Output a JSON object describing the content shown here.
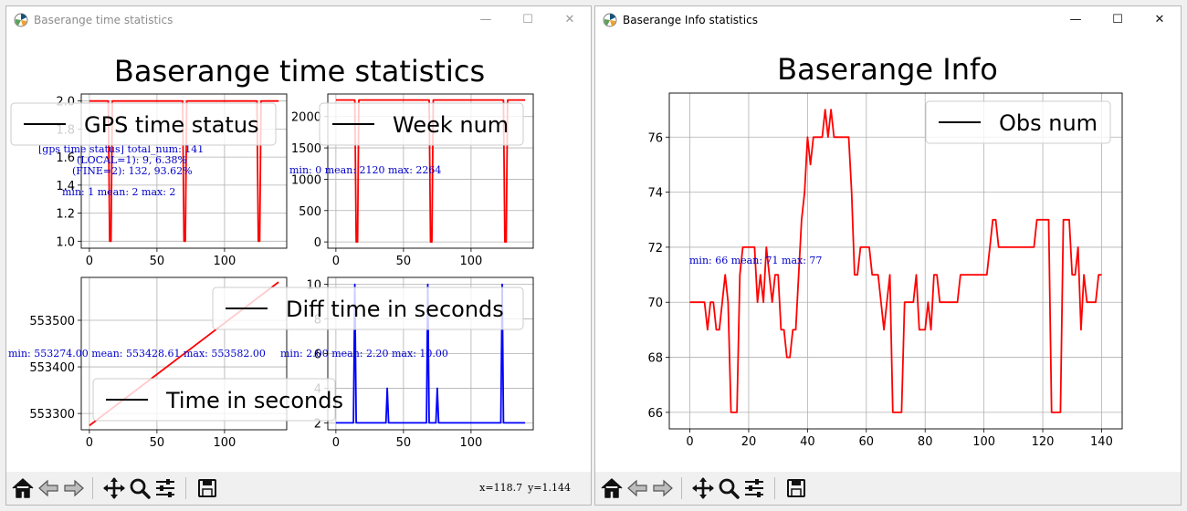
{
  "windows": [
    {
      "title": "Baserange time statistics",
      "figure_title": "Baserange time statistics",
      "coordinates": {
        "x": "x=118.7",
        "y": "y=1.144"
      }
    },
    {
      "title": "Baserange Info statistics",
      "figure_title": "Baserange Info",
      "coordinates": {
        "x": "",
        "y": ""
      }
    }
  ],
  "window_controls": {
    "minimize": "—",
    "maximize": "☐",
    "close": "✕"
  },
  "toolbar": [
    "home-icon",
    "back-arrow-icon",
    "forward-arrow-icon",
    "pan-icon",
    "zoom-icon",
    "configure-subplots-icon",
    "save-icon"
  ],
  "colors": {
    "line_red": "#ff0000",
    "line_blue": "#0000ff",
    "annotation": "#0000cc",
    "grid": "#b0b0b0",
    "legend_line": "#000000"
  },
  "chart_data": [
    {
      "type": "line",
      "window": 0,
      "legend": "GPS time status",
      "legend_placement": "upper-left",
      "color": "red",
      "grid": true,
      "xlim": [
        -6,
        146
      ],
      "ylim": [
        0.95,
        2.05
      ],
      "xticks": [
        0,
        50,
        100
      ],
      "yticks": [
        1.0,
        1.2,
        1.4,
        1.6,
        1.8,
        2.0
      ],
      "ytick_labels": [
        "1.0",
        "1.2",
        "1.4",
        "1.6",
        "1.8",
        "2.0"
      ],
      "annotations": [
        "[gps time status] total_num: 141",
        "(LOCAL=1): 9,  6.38%",
        "(FINE=2): 132,  93.62%",
        "min: 1  mean: 2  max: 2"
      ],
      "x": [
        0,
        14,
        15,
        16,
        17,
        69,
        70,
        71,
        72,
        124,
        125,
        126,
        127,
        140
      ],
      "y": [
        2,
        2,
        1,
        1,
        2,
        2,
        1,
        1,
        2,
        2,
        1,
        1,
        2,
        2
      ]
    },
    {
      "type": "line",
      "window": 0,
      "legend": "Week num",
      "legend_placement": "upper-left",
      "color": "red",
      "grid": true,
      "xlim": [
        -6,
        146
      ],
      "ylim": [
        -100,
        2360
      ],
      "xticks": [
        0,
        50,
        100
      ],
      "yticks": [
        0,
        500,
        1000,
        1500,
        2000
      ],
      "ytick_labels": [
        "0",
        "500",
        "1000",
        "1500",
        "2000"
      ],
      "annotations": [
        "min: 0  mean: 2120  max: 2264"
      ],
      "x": [
        0,
        14,
        15,
        16,
        17,
        69,
        70,
        71,
        72,
        124,
        125,
        126,
        127,
        140
      ],
      "y": [
        2264,
        2264,
        0,
        0,
        2264,
        2264,
        0,
        0,
        2264,
        2264,
        0,
        0,
        2264,
        2264
      ]
    },
    {
      "type": "line",
      "window": 0,
      "legend": "Time in seconds",
      "legend_placement": "lower-right",
      "color": "red",
      "grid": true,
      "xlim": [
        -6,
        146
      ],
      "ylim": [
        553265,
        553592
      ],
      "xticks": [
        0,
        50,
        100
      ],
      "yticks": [
        553300,
        553400,
        553500
      ],
      "ytick_labels": [
        "553300",
        "553400",
        "553500"
      ],
      "annotations": [
        "min: 553274.00  mean: 553428.61  max: 553582.00"
      ],
      "x": [
        0,
        140
      ],
      "y": [
        553274,
        553582
      ]
    },
    {
      "type": "line",
      "window": 0,
      "legend": "Diff time in seconds",
      "legend_placement": "upper-left",
      "color": "blue",
      "grid": true,
      "xlim": [
        -6,
        146
      ],
      "ylim": [
        1.6,
        10.4
      ],
      "xticks": [
        0,
        50,
        100
      ],
      "yticks": [
        2,
        4,
        6,
        8,
        10
      ],
      "ytick_labels": [
        "2",
        "4",
        "6",
        "8",
        "10"
      ],
      "annotations": [
        "min: 2.00  mean: 2.20  max: 10.00"
      ],
      "x": [
        0,
        13,
        14,
        15,
        37,
        38,
        39,
        67,
        68,
        69,
        74,
        75,
        76,
        122,
        123,
        124,
        140
      ],
      "y": [
        2,
        2,
        10,
        2,
        2,
        4,
        2,
        2,
        10,
        2,
        2,
        4,
        2,
        2,
        10,
        2,
        2
      ]
    },
    {
      "type": "line",
      "window": 1,
      "legend": "Obs num",
      "legend_placement": "upper-right",
      "color": "red",
      "grid": true,
      "xlim": [
        -7,
        147
      ],
      "ylim": [
        65.4,
        77.6
      ],
      "xticks": [
        0,
        20,
        40,
        60,
        80,
        100,
        120,
        140
      ],
      "yticks": [
        66,
        68,
        70,
        72,
        74,
        76
      ],
      "ytick_labels": [
        "66",
        "68",
        "70",
        "72",
        "74",
        "76"
      ],
      "annotations": [
        "min: 66  mean: 71  max: 77"
      ],
      "x": [
        0,
        1,
        2,
        3,
        4,
        5,
        6,
        7,
        8,
        9,
        10,
        11,
        12,
        13,
        14,
        15,
        16,
        17,
        18,
        19,
        20,
        21,
        22,
        23,
        24,
        25,
        26,
        27,
        28,
        29,
        30,
        31,
        32,
        33,
        34,
        35,
        36,
        37,
        38,
        39,
        40,
        41,
        42,
        43,
        44,
        45,
        46,
        47,
        48,
        49,
        50,
        51,
        52,
        53,
        54,
        55,
        56,
        57,
        58,
        59,
        60,
        61,
        62,
        63,
        64,
        65,
        66,
        67,
        68,
        69,
        70,
        71,
        72,
        73,
        74,
        75,
        76,
        77,
        78,
        79,
        80,
        81,
        82,
        83,
        84,
        85,
        86,
        87,
        88,
        89,
        90,
        91,
        92,
        93,
        94,
        95,
        96,
        97,
        98,
        99,
        100,
        101,
        102,
        103,
        104,
        105,
        106,
        107,
        108,
        109,
        110,
        111,
        112,
        113,
        114,
        115,
        116,
        117,
        118,
        119,
        120,
        121,
        122,
        123,
        124,
        125,
        126,
        127,
        128,
        129,
        130,
        131,
        132,
        133,
        134,
        135,
        136,
        137,
        138,
        139,
        140
      ],
      "y": [
        70,
        70,
        70,
        70,
        70,
        70,
        69,
        70,
        70,
        69,
        69,
        70,
        71,
        70,
        66,
        66,
        66,
        71,
        72,
        72,
        72,
        72,
        72,
        70,
        71,
        70,
        72,
        71,
        70,
        71,
        71,
        69,
        69,
        68,
        68,
        69,
        69,
        71,
        73,
        74,
        76,
        75,
        76,
        76,
        76,
        76,
        77,
        76,
        77,
        76,
        76,
        76,
        76,
        76,
        76,
        74,
        71,
        71,
        72,
        72,
        72,
        72,
        71,
        71,
        71,
        70,
        69,
        70,
        71,
        66,
        66,
        66,
        66,
        70,
        70,
        70,
        70,
        71,
        69,
        69,
        69,
        70,
        69,
        71,
        71,
        70,
        70,
        70,
        70,
        70,
        70,
        70,
        71,
        71,
        71,
        71,
        71,
        71,
        71,
        71,
        71,
        71,
        72,
        73,
        73,
        72,
        72,
        72,
        72,
        72,
        72,
        72,
        72,
        72,
        72,
        72,
        72,
        72,
        73,
        73,
        73,
        73,
        73,
        66,
        66,
        66,
        66,
        73,
        73,
        73,
        71,
        71,
        72,
        69,
        71,
        70,
        70,
        70,
        70,
        71,
        71
      ]
    }
  ]
}
